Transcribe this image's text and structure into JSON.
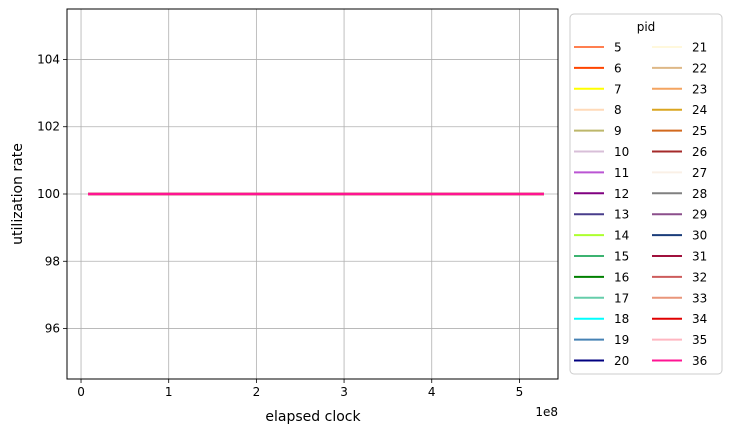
{
  "chart_data": {
    "type": "line",
    "xlabel": "elapsed clock",
    "ylabel": "utilization rate",
    "x_offset_label": "1e8",
    "xlim": [
      -0.16,
      5.44
    ],
    "ylim": [
      94.5,
      105.5
    ],
    "x_ticks": [
      {
        "value": 0,
        "label": "0"
      },
      {
        "value": 1,
        "label": "1"
      },
      {
        "value": 2,
        "label": "2"
      },
      {
        "value": 3,
        "label": "3"
      },
      {
        "value": 4,
        "label": "4"
      },
      {
        "value": 5,
        "label": "5"
      }
    ],
    "y_ticks": [
      {
        "value": 96,
        "label": "96"
      },
      {
        "value": 98,
        "label": "98"
      },
      {
        "value": 100,
        "label": "100"
      },
      {
        "value": 102,
        "label": "102"
      },
      {
        "value": 104,
        "label": "104"
      }
    ],
    "grid": true,
    "legend": {
      "title": "pid",
      "placement": "outside-right",
      "columns": 2
    },
    "series": [
      {
        "name": "5",
        "color": "#ff7f50",
        "x": [
          0.08,
          5.28
        ],
        "y": [
          100,
          100
        ]
      },
      {
        "name": "6",
        "color": "#ff4500",
        "x": [
          0.08,
          5.28
        ],
        "y": [
          100,
          100
        ]
      },
      {
        "name": "7",
        "color": "#ffff00",
        "x": [
          0.08,
          5.28
        ],
        "y": [
          100,
          100
        ]
      },
      {
        "name": "8",
        "color": "#ffdab9",
        "x": [
          0.08,
          5.28
        ],
        "y": [
          100,
          100
        ]
      },
      {
        "name": "9",
        "color": "#bdb76b",
        "x": [
          0.08,
          5.28
        ],
        "y": [
          100,
          100
        ]
      },
      {
        "name": "10",
        "color": "#d8bfd8",
        "x": [
          0.08,
          5.28
        ],
        "y": [
          100,
          100
        ]
      },
      {
        "name": "11",
        "color": "#ba55d3",
        "x": [
          0.08,
          5.28
        ],
        "y": [
          100,
          100
        ]
      },
      {
        "name": "12",
        "color": "#800080",
        "x": [
          0.08,
          5.28
        ],
        "y": [
          100,
          100
        ]
      },
      {
        "name": "13",
        "color": "#483d8b",
        "x": [
          0.08,
          5.28
        ],
        "y": [
          100,
          100
        ]
      },
      {
        "name": "14",
        "color": "#adff2f",
        "x": [
          0.08,
          5.28
        ],
        "y": [
          100,
          100
        ]
      },
      {
        "name": "15",
        "color": "#3cb371",
        "x": [
          0.08,
          5.28
        ],
        "y": [
          100,
          100
        ]
      },
      {
        "name": "16",
        "color": "#008000",
        "x": [
          0.08,
          5.28
        ],
        "y": [
          100,
          100
        ]
      },
      {
        "name": "17",
        "color": "#66cdaa",
        "x": [
          0.08,
          5.28
        ],
        "y": [
          100,
          100
        ]
      },
      {
        "name": "18",
        "color": "#00ffff",
        "x": [
          0.08,
          5.28
        ],
        "y": [
          100,
          100
        ]
      },
      {
        "name": "19",
        "color": "#4682b4",
        "x": [
          0.08,
          5.28
        ],
        "y": [
          100,
          100
        ]
      },
      {
        "name": "20",
        "color": "#000080",
        "x": [
          0.08,
          5.28
        ],
        "y": [
          100,
          100
        ]
      },
      {
        "name": "21",
        "color": "#fff8dc",
        "x": [
          0.08,
          5.28
        ],
        "y": [
          100,
          100
        ]
      },
      {
        "name": "22",
        "color": "#deb887",
        "x": [
          0.08,
          5.28
        ],
        "y": [
          100,
          100
        ]
      },
      {
        "name": "23",
        "color": "#f4a460",
        "x": [
          0.08,
          5.28
        ],
        "y": [
          100,
          100
        ]
      },
      {
        "name": "24",
        "color": "#daa520",
        "x": [
          0.08,
          5.28
        ],
        "y": [
          100,
          100
        ]
      },
      {
        "name": "25",
        "color": "#d2691e",
        "x": [
          0.08,
          5.28
        ],
        "y": [
          100,
          100
        ]
      },
      {
        "name": "26",
        "color": "#a52a2a",
        "x": [
          0.08,
          5.28
        ],
        "y": [
          100,
          100
        ]
      },
      {
        "name": "27",
        "color": "#faf0e6",
        "x": [
          0.08,
          5.28
        ],
        "y": [
          100,
          100
        ]
      },
      {
        "name": "28",
        "color": "#808080",
        "x": [
          0.08,
          5.28
        ],
        "y": [
          100,
          100
        ]
      },
      {
        "name": "29",
        "color": "#8b4f8b",
        "x": [
          0.08,
          5.28
        ],
        "y": [
          100,
          100
        ]
      },
      {
        "name": "30",
        "color": "#1a3c7a",
        "x": [
          0.08,
          5.28
        ],
        "y": [
          100,
          100
        ]
      },
      {
        "name": "31",
        "color": "#a0103c",
        "x": [
          0.08,
          5.28
        ],
        "y": [
          100,
          100
        ]
      },
      {
        "name": "32",
        "color": "#cd5c5c",
        "x": [
          0.08,
          5.28
        ],
        "y": [
          100,
          100
        ]
      },
      {
        "name": "33",
        "color": "#e9967a",
        "x": [
          0.08,
          5.28
        ],
        "y": [
          100,
          100
        ]
      },
      {
        "name": "34",
        "color": "#e00000",
        "x": [
          0.08,
          5.28
        ],
        "y": [
          100,
          100
        ]
      },
      {
        "name": "35",
        "color": "#ffb6c1",
        "x": [
          0.08,
          5.28
        ],
        "y": [
          100,
          100
        ]
      },
      {
        "name": "36",
        "color": "#ff1493",
        "x": [
          0.08,
          5.28
        ],
        "y": [
          100,
          100
        ]
      }
    ]
  }
}
